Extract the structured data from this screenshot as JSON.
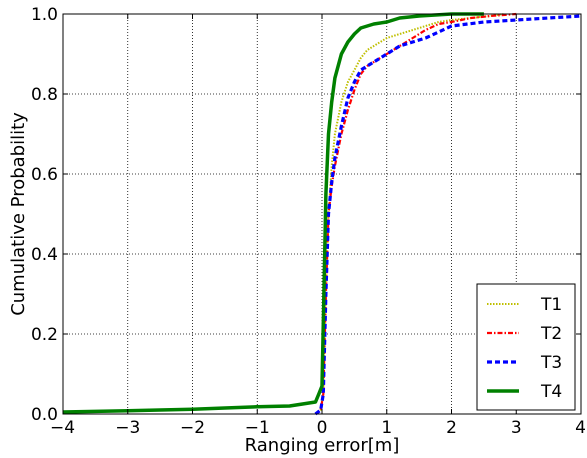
{
  "chart_data": {
    "type": "line",
    "xlabel": "Ranging error[m]",
    "ylabel": "Cumulative Probability",
    "xlim": [
      -4,
      4
    ],
    "ylim": [
      0,
      1
    ],
    "xticks": [
      -4,
      -3,
      -2,
      -1,
      0,
      1,
      2,
      3,
      4
    ],
    "xtick_labels": [
      "−4",
      "−3",
      "−2",
      "−1",
      "0",
      "1",
      "2",
      "3",
      "4"
    ],
    "yticks": [
      0,
      0.2,
      0.4,
      0.6,
      0.8,
      1.0
    ],
    "ytick_labels": [
      "0.0",
      "0.2",
      "0.4",
      "0.6",
      "0.8",
      "1.0"
    ],
    "grid": true,
    "legend_position": "bottom-right",
    "series": [
      {
        "name": "T1",
        "color": "#bfbf00",
        "style": "dotted",
        "x": [
          -0.1,
          -0.02,
          0.02,
          0.06,
          0.1,
          0.15,
          0.2,
          0.3,
          0.4,
          0.5,
          0.6,
          0.7,
          0.8,
          0.9,
          1.0,
          1.2,
          1.4,
          1.6,
          1.8,
          2.0,
          2.3,
          2.6,
          2.8
        ],
        "y": [
          0.0,
          0.01,
          0.05,
          0.3,
          0.5,
          0.62,
          0.7,
          0.78,
          0.83,
          0.86,
          0.89,
          0.91,
          0.92,
          0.93,
          0.94,
          0.95,
          0.96,
          0.97,
          0.98,
          0.985,
          0.99,
          0.995,
          1.0
        ]
      },
      {
        "name": "T2",
        "color": "#ff0000",
        "style": "dashdot",
        "x": [
          -0.1,
          -0.02,
          0.02,
          0.06,
          0.1,
          0.15,
          0.2,
          0.3,
          0.4,
          0.5,
          0.6,
          0.7,
          0.8,
          0.9,
          1.0,
          1.2,
          1.4,
          1.6,
          1.8,
          2.0,
          2.3,
          2.6,
          3.0
        ],
        "y": [
          0.0,
          0.01,
          0.05,
          0.3,
          0.5,
          0.57,
          0.62,
          0.7,
          0.76,
          0.81,
          0.85,
          0.87,
          0.88,
          0.89,
          0.9,
          0.92,
          0.94,
          0.96,
          0.975,
          0.98,
          0.99,
          0.995,
          1.0
        ]
      },
      {
        "name": "T3",
        "color": "#0000ff",
        "style": "dashed",
        "x": [
          -0.1,
          -0.02,
          0.02,
          0.06,
          0.1,
          0.15,
          0.2,
          0.3,
          0.4,
          0.5,
          0.6,
          0.7,
          0.8,
          0.9,
          1.0,
          1.2,
          1.4,
          1.6,
          1.8,
          2.0,
          2.5,
          3.0,
          3.5,
          4.0
        ],
        "y": [
          0.0,
          0.01,
          0.05,
          0.3,
          0.5,
          0.58,
          0.64,
          0.72,
          0.79,
          0.83,
          0.86,
          0.87,
          0.88,
          0.89,
          0.9,
          0.92,
          0.93,
          0.94,
          0.955,
          0.97,
          0.98,
          0.985,
          0.99,
          0.995
        ]
      },
      {
        "name": "T4",
        "color": "#008000",
        "style": "solid",
        "x": [
          -4.0,
          -3.0,
          -2.5,
          -2.0,
          -1.5,
          -1.0,
          -0.5,
          -0.1,
          -0.05,
          0.0,
          0.03,
          0.06,
          0.1,
          0.15,
          0.2,
          0.3,
          0.4,
          0.5,
          0.6,
          0.8,
          1.0,
          1.2,
          1.5,
          2.0,
          2.5
        ],
        "y": [
          0.005,
          0.008,
          0.01,
          0.012,
          0.015,
          0.018,
          0.02,
          0.03,
          0.05,
          0.07,
          0.3,
          0.55,
          0.7,
          0.78,
          0.84,
          0.9,
          0.93,
          0.95,
          0.965,
          0.975,
          0.98,
          0.99,
          0.995,
          1.0,
          1.0
        ]
      }
    ]
  }
}
